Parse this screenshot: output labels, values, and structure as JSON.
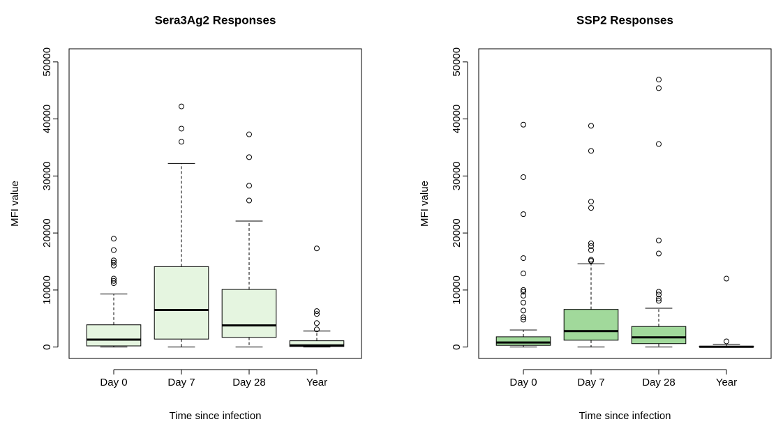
{
  "chart_data": [
    {
      "type": "box",
      "title": "Sera3Ag2 Responses",
      "xlabel": "Time since infection",
      "ylabel": "MFI value",
      "categories": [
        "Day 0",
        "Day 7",
        "Day 28",
        "Year"
      ],
      "color": "#e5f5e0",
      "ylim": [
        -2000,
        52300
      ],
      "yticks": [
        0,
        10000,
        20000,
        30000,
        40000,
        50000
      ],
      "boxes": [
        {
          "min": 0,
          "q1": 200,
          "median": 1300,
          "q3": 3900,
          "max": 9300,
          "outliers": [
            19000,
            17000,
            15200,
            14800,
            14300,
            12000,
            11600,
            11200
          ]
        },
        {
          "min": 0,
          "q1": 1400,
          "median": 6500,
          "q3": 14100,
          "max": 32200,
          "outliers": [
            42200,
            38300,
            36000
          ]
        },
        {
          "min": 0,
          "q1": 1700,
          "median": 3800,
          "q3": 10100,
          "max": 22100,
          "outliers": [
            37300,
            33300,
            28300,
            25700
          ]
        },
        {
          "min": 0,
          "q1": 100,
          "median": 300,
          "q3": 1100,
          "max": 2800,
          "outliers": [
            17300,
            6300,
            5800,
            4200,
            3100
          ]
        }
      ]
    },
    {
      "type": "box",
      "title": "SSP2 Responses",
      "xlabel": "Time since infection",
      "ylabel": "MFI value",
      "categories": [
        "Day 0",
        "Day 7",
        "Day 28",
        "Year"
      ],
      "color": "#a1d99b",
      "ylim": [
        -2000,
        52300
      ],
      "yticks": [
        0,
        10000,
        20000,
        30000,
        40000,
        50000
      ],
      "boxes": [
        {
          "min": 0,
          "q1": 300,
          "median": 800,
          "q3": 1800,
          "max": 3000,
          "outliers": [
            39000,
            29800,
            23300,
            15600,
            12900,
            10000,
            9700,
            9000,
            7800,
            6400,
            5200,
            4800
          ]
        },
        {
          "min": 0,
          "q1": 1200,
          "median": 2800,
          "q3": 6600,
          "max": 14600,
          "outliers": [
            38800,
            34400,
            25500,
            24400,
            18200,
            17700,
            17000,
            15300,
            15100
          ]
        },
        {
          "min": 0,
          "q1": 600,
          "median": 1700,
          "q3": 3600,
          "max": 6800,
          "outliers": [
            46900,
            45400,
            35600,
            18700,
            16400,
            9700,
            9200,
            8500,
            8100
          ]
        },
        {
          "min": 0,
          "q1": 0,
          "median": 50,
          "q3": 150,
          "max": 500,
          "outliers": [
            12000,
            1000
          ]
        }
      ]
    }
  ]
}
